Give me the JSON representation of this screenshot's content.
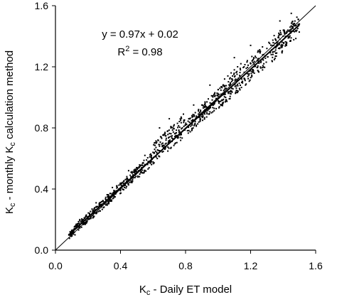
{
  "chart_data": {
    "type": "scatter",
    "xlabel": {
      "prefix": "K",
      "sub": "c",
      "rest": " - Daily ET model"
    },
    "ylabel": {
      "prefix": "K",
      "sub": "c",
      "middle": " - monthly K",
      "sub2": "c",
      "rest": " calculation method"
    },
    "xlim": [
      0.0,
      1.6
    ],
    "ylim": [
      0.0,
      1.6
    ],
    "xticks": [
      "0.0",
      "0.4",
      "0.8",
      "1.2",
      "1.6"
    ],
    "yticks": [
      "0.0",
      "0.4",
      "0.8",
      "1.2",
      "1.6"
    ],
    "grid": false,
    "annotation": {
      "equation": "y = 0.97x + 0.02",
      "r2_prefix": "R",
      "r2_sup": "2",
      "r2_rest": " = 0.98"
    },
    "regression": {
      "slope": 0.97,
      "intercept": 0.02,
      "x_range": [
        0.08,
        1.5
      ]
    },
    "one_to_one_line": {
      "x_range": [
        0.0,
        1.6
      ]
    },
    "point_color": "#000000",
    "points_description_x_range": [
      0.08,
      1.5
    ],
    "points": [
      [
        0.09,
        0.12
      ],
      [
        0.1,
        0.13
      ],
      [
        0.11,
        0.12
      ],
      [
        0.12,
        0.14
      ],
      [
        0.13,
        0.15
      ],
      [
        0.14,
        0.16
      ],
      [
        0.15,
        0.17
      ],
      [
        0.16,
        0.19
      ],
      [
        0.17,
        0.18
      ],
      [
        0.18,
        0.21
      ],
      [
        0.19,
        0.22
      ],
      [
        0.2,
        0.21
      ],
      [
        0.21,
        0.24
      ],
      [
        0.22,
        0.23
      ],
      [
        0.23,
        0.26
      ],
      [
        0.24,
        0.25
      ],
      [
        0.25,
        0.28
      ],
      [
        0.26,
        0.27
      ],
      [
        0.27,
        0.3
      ],
      [
        0.28,
        0.29
      ],
      [
        0.29,
        0.32
      ],
      [
        0.3,
        0.31
      ],
      [
        0.31,
        0.33
      ],
      [
        0.32,
        0.35
      ],
      [
        0.33,
        0.34
      ],
      [
        0.34,
        0.37
      ],
      [
        0.35,
        0.36
      ],
      [
        0.36,
        0.39
      ],
      [
        0.37,
        0.38
      ],
      [
        0.38,
        0.41
      ],
      [
        0.39,
        0.4
      ],
      [
        0.4,
        0.43
      ],
      [
        0.41,
        0.42
      ],
      [
        0.42,
        0.45
      ],
      [
        0.43,
        0.44
      ],
      [
        0.44,
        0.47
      ],
      [
        0.45,
        0.46
      ],
      [
        0.46,
        0.49
      ],
      [
        0.47,
        0.48
      ],
      [
        0.48,
        0.51
      ],
      [
        0.49,
        0.5
      ],
      [
        0.5,
        0.53
      ],
      [
        0.51,
        0.52
      ],
      [
        0.52,
        0.55
      ],
      [
        0.53,
        0.54
      ],
      [
        0.54,
        0.57
      ],
      [
        0.55,
        0.56
      ],
      [
        0.56,
        0.59
      ],
      [
        0.57,
        0.58
      ],
      [
        0.58,
        0.61
      ],
      [
        0.59,
        0.62
      ],
      [
        0.6,
        0.64
      ],
      [
        0.61,
        0.66
      ],
      [
        0.62,
        0.7
      ],
      [
        0.63,
        0.72
      ],
      [
        0.64,
        0.68
      ],
      [
        0.65,
        0.74
      ],
      [
        0.66,
        0.7
      ],
      [
        0.67,
        0.76
      ],
      [
        0.68,
        0.72
      ],
      [
        0.69,
        0.78
      ],
      [
        0.7,
        0.74
      ],
      [
        0.71,
        0.8
      ],
      [
        0.72,
        0.73
      ],
      [
        0.73,
        0.82
      ],
      [
        0.74,
        0.75
      ],
      [
        0.75,
        0.83
      ],
      [
        0.76,
        0.77
      ],
      [
        0.77,
        0.85
      ],
      [
        0.78,
        0.8
      ],
      [
        0.8,
        0.82
      ],
      [
        0.82,
        0.86
      ],
      [
        0.84,
        0.88
      ],
      [
        0.86,
        0.9
      ],
      [
        0.88,
        0.92
      ],
      [
        0.9,
        0.95
      ],
      [
        0.92,
        0.97
      ],
      [
        0.94,
        0.99
      ],
      [
        0.96,
        1.01
      ],
      [
        0.98,
        1.03
      ],
      [
        1.0,
        1.05
      ],
      [
        1.02,
        1.07
      ],
      [
        1.04,
        1.12
      ],
      [
        1.06,
        1.14
      ],
      [
        1.08,
        1.16
      ],
      [
        1.1,
        1.18
      ],
      [
        1.12,
        1.2
      ],
      [
        1.14,
        1.22
      ],
      [
        1.16,
        1.2
      ],
      [
        1.18,
        1.24
      ],
      [
        1.2,
        1.22
      ],
      [
        1.22,
        1.26
      ],
      [
        1.24,
        1.24
      ],
      [
        1.26,
        1.3
      ],
      [
        1.28,
        1.28
      ],
      [
        1.3,
        1.32
      ],
      [
        1.32,
        1.3
      ],
      [
        1.34,
        1.34
      ],
      [
        1.36,
        1.36
      ],
      [
        1.38,
        1.38
      ],
      [
        1.4,
        1.4
      ],
      [
        1.42,
        1.42
      ],
      [
        1.44,
        1.44
      ],
      [
        1.46,
        1.46
      ],
      [
        1.48,
        1.47
      ],
      [
        1.5,
        1.48
      ],
      [
        1.45,
        1.55
      ],
      [
        1.38,
        1.5
      ],
      [
        1.2,
        1.34
      ],
      [
        1.1,
        1.26
      ],
      [
        0.95,
        1.08
      ],
      [
        0.85,
        0.95
      ],
      [
        0.7,
        0.86
      ],
      [
        0.64,
        0.8
      ],
      [
        0.55,
        0.62
      ],
      [
        0.45,
        0.52
      ],
      [
        0.35,
        0.41
      ],
      [
        0.25,
        0.31
      ],
      [
        0.15,
        0.2
      ],
      [
        0.12,
        0.1
      ]
    ]
  }
}
